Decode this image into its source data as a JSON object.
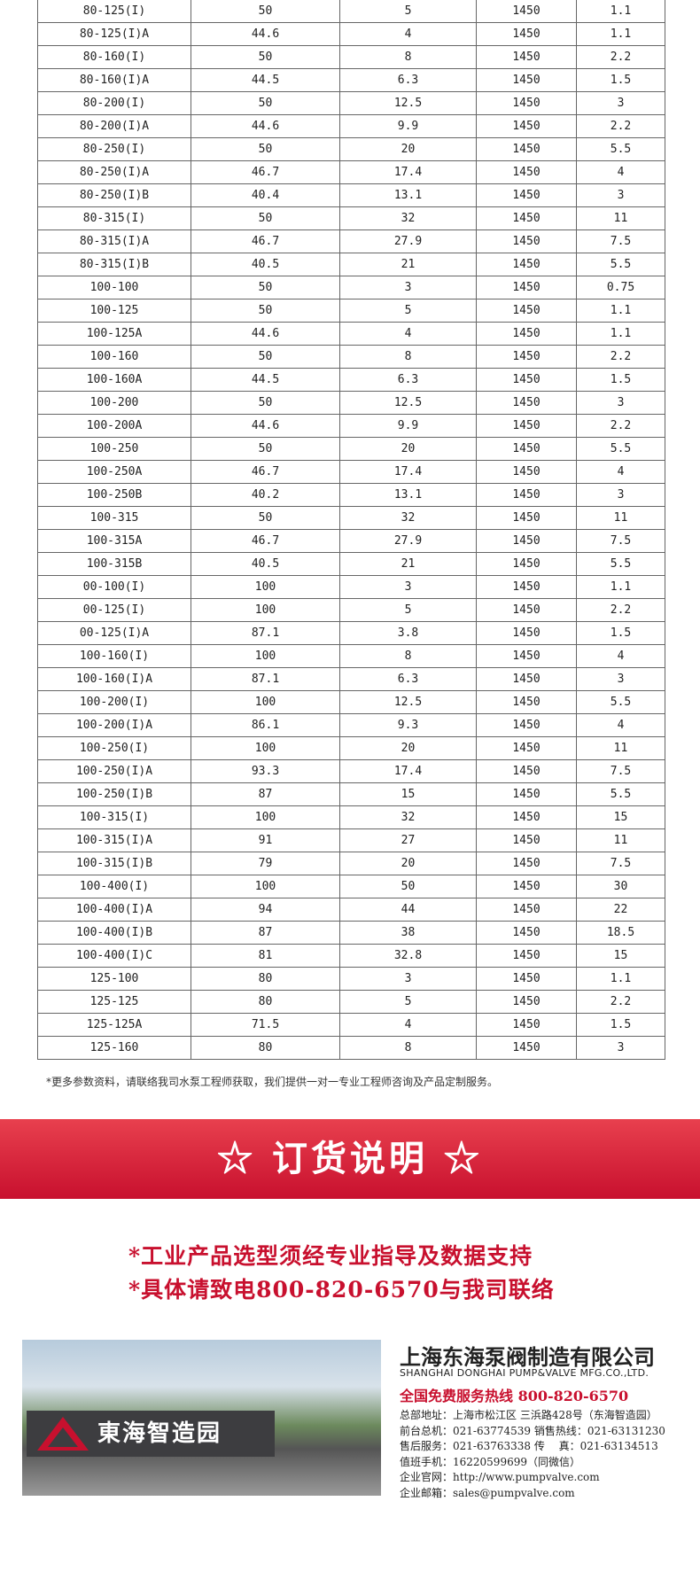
{
  "table": {
    "rows": [
      [
        "80-125(I)",
        "50",
        "5",
        "1450",
        "1.1"
      ],
      [
        "80-125(I)A",
        "44.6",
        "4",
        "1450",
        "1.1"
      ],
      [
        "80-160(I)",
        "50",
        "8",
        "1450",
        "2.2"
      ],
      [
        "80-160(I)A",
        "44.5",
        "6.3",
        "1450",
        "1.5"
      ],
      [
        "80-200(I)",
        "50",
        "12.5",
        "1450",
        "3"
      ],
      [
        "80-200(I)A",
        "44.6",
        "9.9",
        "1450",
        "2.2"
      ],
      [
        "80-250(I)",
        "50",
        "20",
        "1450",
        "5.5"
      ],
      [
        "80-250(I)A",
        "46.7",
        "17.4",
        "1450",
        "4"
      ],
      [
        "80-250(I)B",
        "40.4",
        "13.1",
        "1450",
        "3"
      ],
      [
        "80-315(I)",
        "50",
        "32",
        "1450",
        "11"
      ],
      [
        "80-315(I)A",
        "46.7",
        "27.9",
        "1450",
        "7.5"
      ],
      [
        "80-315(I)B",
        "40.5",
        "21",
        "1450",
        "5.5"
      ],
      [
        "100-100",
        "50",
        "3",
        "1450",
        "0.75"
      ],
      [
        "100-125",
        "50",
        "5",
        "1450",
        "1.1"
      ],
      [
        "100-125A",
        "44.6",
        "4",
        "1450",
        "1.1"
      ],
      [
        "100-160",
        "50",
        "8",
        "1450",
        "2.2"
      ],
      [
        "100-160A",
        "44.5",
        "6.3",
        "1450",
        "1.5"
      ],
      [
        "100-200",
        "50",
        "12.5",
        "1450",
        "3"
      ],
      [
        "100-200A",
        "44.6",
        "9.9",
        "1450",
        "2.2"
      ],
      [
        "100-250",
        "50",
        "20",
        "1450",
        "5.5"
      ],
      [
        "100-250A",
        "46.7",
        "17.4",
        "1450",
        "4"
      ],
      [
        "100-250B",
        "40.2",
        "13.1",
        "1450",
        "3"
      ],
      [
        "100-315",
        "50",
        "32",
        "1450",
        "11"
      ],
      [
        "100-315A",
        "46.7",
        "27.9",
        "1450",
        "7.5"
      ],
      [
        "100-315B",
        "40.5",
        "21",
        "1450",
        "5.5"
      ],
      [
        "00-100(I)",
        "100",
        "3",
        "1450",
        "1.1"
      ],
      [
        "00-125(I)",
        "100",
        "5",
        "1450",
        "2.2"
      ],
      [
        "00-125(I)A",
        "87.1",
        "3.8",
        "1450",
        "1.5"
      ],
      [
        "100-160(I)",
        "100",
        "8",
        "1450",
        "4"
      ],
      [
        "100-160(I)A",
        "87.1",
        "6.3",
        "1450",
        "3"
      ],
      [
        "100-200(I)",
        "100",
        "12.5",
        "1450",
        "5.5"
      ],
      [
        "100-200(I)A",
        "86.1",
        "9.3",
        "1450",
        "4"
      ],
      [
        "100-250(I)",
        "100",
        "20",
        "1450",
        "11"
      ],
      [
        "100-250(I)A",
        "93.3",
        "17.4",
        "1450",
        "7.5"
      ],
      [
        "100-250(I)B",
        "87",
        "15",
        "1450",
        "5.5"
      ],
      [
        "100-315(I)",
        "100",
        "32",
        "1450",
        "15"
      ],
      [
        "100-315(I)A",
        "91",
        "27",
        "1450",
        "11"
      ],
      [
        "100-315(I)B",
        "79",
        "20",
        "1450",
        "7.5"
      ],
      [
        "100-400(I)",
        "100",
        "50",
        "1450",
        "30"
      ],
      [
        "100-400(I)A",
        "94",
        "44",
        "1450",
        "22"
      ],
      [
        "100-400(I)B",
        "87",
        "38",
        "1450",
        "18.5"
      ],
      [
        "100-400(I)C",
        "81",
        "32.8",
        "1450",
        "15"
      ],
      [
        "125-100",
        "80",
        "3",
        "1450",
        "1.1"
      ],
      [
        "125-125",
        "80",
        "5",
        "1450",
        "2.2"
      ],
      [
        "125-125A",
        "71.5",
        "4",
        "1450",
        "1.5"
      ],
      [
        "125-160",
        "80",
        "8",
        "1450",
        "3"
      ]
    ],
    "note": "*更多参数资料，请联络我司水泵工程师获取，我们提供一对一专业工程师咨询及产品定制服务。"
  },
  "order": {
    "title": "☆ 订货说明 ☆",
    "lines": [
      "*工业产品选型须经专业指导及数据支持",
      "*具体请致电800-820-6570与我司联络"
    ]
  },
  "company": {
    "sign": "東海智造园",
    "name": "上海东海泵阀制造有限公司",
    "english": "SHANGHAI DONGHAI PUMP&VALVE MFG.CO.,LTD.",
    "hotline": "全国免费服务热线  800-820-6570",
    "contacts": [
      "总部地址：上海市松江区 三浜路428号（东海智造园）",
      "前台总机：021-63774539  销售热线：021-63131230",
      "售后服务：021-63763338  传　 真：021-63134513",
      "值班手机：16220599699（同微信）",
      "企业官网：http://www.pumpvalve.com",
      "企业邮箱：sales@pumpvalve.com"
    ]
  }
}
